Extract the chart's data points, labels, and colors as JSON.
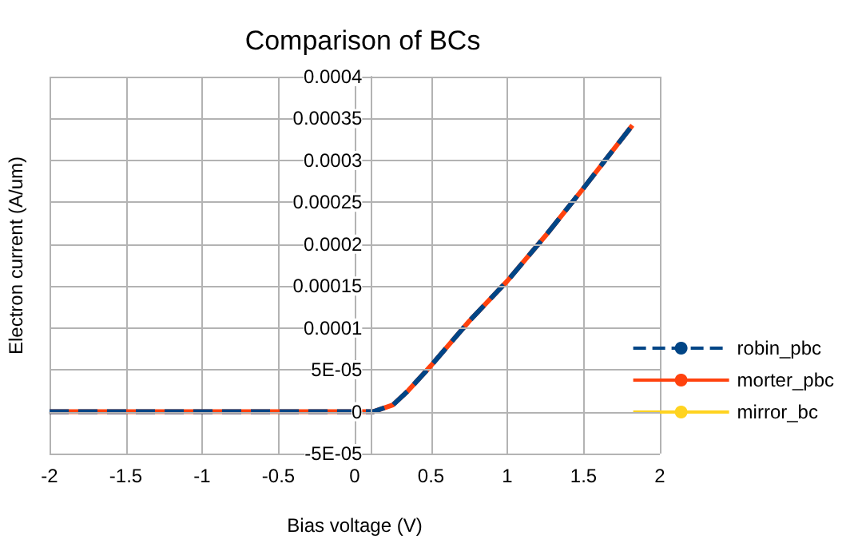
{
  "chart_data": {
    "type": "line",
    "title": "Comparison of BCs",
    "xlabel": "Bias voltage (V)",
    "ylabel": "Electron current (A/um)",
    "x": [
      -2,
      -1.5,
      -1,
      -0.5,
      0,
      0.12,
      0.25,
      0.35,
      0.5,
      0.75,
      1,
      1.25,
      1.5,
      1.82
    ],
    "series": [
      {
        "name": "robin_pbc",
        "color": "#004586",
        "line_style": "dashed",
        "values": [
          0,
          0,
          0,
          0,
          0,
          0,
          8e-06,
          2.5e-05,
          5.5e-05,
          0.000108,
          0.000156,
          0.00021,
          0.000267,
          0.000342
        ]
      },
      {
        "name": "morter_pbc",
        "color": "#ff420e",
        "line_style": "solid",
        "values": [
          0,
          0,
          0,
          0,
          0,
          0,
          8e-06,
          2.5e-05,
          5.5e-05,
          0.000108,
          0.000156,
          0.00021,
          0.000267,
          0.000342
        ]
      },
      {
        "name": "mirror_bc",
        "color": "#ffd320",
        "line_style": "solid",
        "values": [
          null,
          null,
          null,
          null,
          null,
          null,
          null,
          null,
          null,
          null,
          null,
          null,
          null,
          null
        ]
      }
    ],
    "xlim": [
      -2,
      2
    ],
    "xticks": [
      -2,
      -1.5,
      -1,
      -0.5,
      0,
      0.5,
      1,
      1.5,
      2
    ],
    "ylim": [
      -5e-05,
      0.0004
    ],
    "yticks": [
      {
        "value": -5e-05,
        "label": "-5E-05"
      },
      0,
      {
        "value": 5e-05,
        "label": "5E-05"
      },
      0.0001,
      0.00015,
      0.0002,
      0.00025,
      0.0003,
      0.00035,
      0.0004
    ],
    "grid": true,
    "legend": "right",
    "marker": "none"
  }
}
